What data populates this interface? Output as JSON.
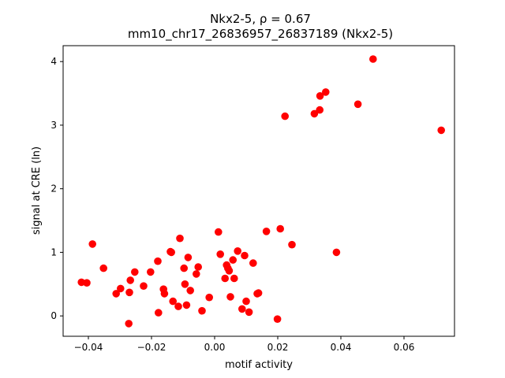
{
  "chart_data": {
    "type": "scatter",
    "title_line1": "Nkx2-5, ρ = 0.67",
    "title_line2": "mm10_chr17_26836957_26837189 (Nkx2-5)",
    "xlabel": "motif activity",
    "ylabel": "signal at CRE (ln)",
    "xlim": [
      -0.048,
      0.076
    ],
    "ylim": [
      -0.32,
      4.25
    ],
    "xticks": [
      -0.04,
      -0.02,
      0.0,
      0.02,
      0.04,
      0.06
    ],
    "xtick_labels": [
      "−0.04",
      "−0.02",
      "0.00",
      "0.02",
      "0.04",
      "0.06"
    ],
    "yticks": [
      0,
      1,
      2,
      3,
      4
    ],
    "ytick_labels": [
      "0",
      "1",
      "2",
      "3",
      "4"
    ],
    "marker_color": "#ff0000",
    "grid": false,
    "points": [
      {
        "x": -0.0422,
        "y": 0.53
      },
      {
        "x": -0.0405,
        "y": 0.52
      },
      {
        "x": -0.0387,
        "y": 1.13
      },
      {
        "x": -0.0352,
        "y": 0.75
      },
      {
        "x": -0.0312,
        "y": 0.35
      },
      {
        "x": -0.0298,
        "y": 0.43
      },
      {
        "x": -0.0272,
        "y": -0.12
      },
      {
        "x": -0.027,
        "y": 0.37
      },
      {
        "x": -0.0267,
        "y": 0.56
      },
      {
        "x": -0.0253,
        "y": 0.69
      },
      {
        "x": -0.0225,
        "y": 0.47
      },
      {
        "x": -0.0203,
        "y": 0.69
      },
      {
        "x": -0.018,
        "y": 0.86
      },
      {
        "x": -0.0178,
        "y": 0.05
      },
      {
        "x": -0.0162,
        "y": 0.42
      },
      {
        "x": -0.0159,
        "y": 0.35
      },
      {
        "x": -0.014,
        "y": 1.01
      },
      {
        "x": -0.0137,
        "y": 1.0
      },
      {
        "x": -0.0132,
        "y": 0.23
      },
      {
        "x": -0.0115,
        "y": 0.15
      },
      {
        "x": -0.011,
        "y": 1.22
      },
      {
        "x": -0.0097,
        "y": 0.75
      },
      {
        "x": -0.0094,
        "y": 0.5
      },
      {
        "x": -0.0089,
        "y": 0.17
      },
      {
        "x": -0.0084,
        "y": 0.92
      },
      {
        "x": -0.0077,
        "y": 0.4
      },
      {
        "x": -0.0058,
        "y": 0.66
      },
      {
        "x": -0.0052,
        "y": 0.77
      },
      {
        "x": -0.004,
        "y": 0.08
      },
      {
        "x": -0.0017,
        "y": 0.29
      },
      {
        "x": 0.0012,
        "y": 1.32
      },
      {
        "x": 0.0018,
        "y": 0.97
      },
      {
        "x": 0.0033,
        "y": 0.59
      },
      {
        "x": 0.0038,
        "y": 0.8
      },
      {
        "x": 0.0042,
        "y": 0.75
      },
      {
        "x": 0.0046,
        "y": 0.71
      },
      {
        "x": 0.005,
        "y": 0.3
      },
      {
        "x": 0.0058,
        "y": 0.88
      },
      {
        "x": 0.0062,
        "y": 0.59
      },
      {
        "x": 0.0073,
        "y": 1.02
      },
      {
        "x": 0.0087,
        "y": 0.11
      },
      {
        "x": 0.0095,
        "y": 0.95
      },
      {
        "x": 0.01,
        "y": 0.23
      },
      {
        "x": 0.0109,
        "y": 0.06
      },
      {
        "x": 0.0122,
        "y": 0.83
      },
      {
        "x": 0.0135,
        "y": 0.35
      },
      {
        "x": 0.0139,
        "y": 0.36
      },
      {
        "x": 0.0164,
        "y": 1.33
      },
      {
        "x": 0.0199,
        "y": -0.05
      },
      {
        "x": 0.0208,
        "y": 1.37
      },
      {
        "x": 0.0223,
        "y": 3.14
      },
      {
        "x": 0.0245,
        "y": 1.12
      },
      {
        "x": 0.0316,
        "y": 3.18
      },
      {
        "x": 0.0333,
        "y": 3.24
      },
      {
        "x": 0.0334,
        "y": 3.46
      },
      {
        "x": 0.0352,
        "y": 3.52
      },
      {
        "x": 0.0386,
        "y": 1.0
      },
      {
        "x": 0.0454,
        "y": 3.33
      },
      {
        "x": 0.0502,
        "y": 4.04
      },
      {
        "x": 0.0718,
        "y": 2.92
      }
    ]
  }
}
